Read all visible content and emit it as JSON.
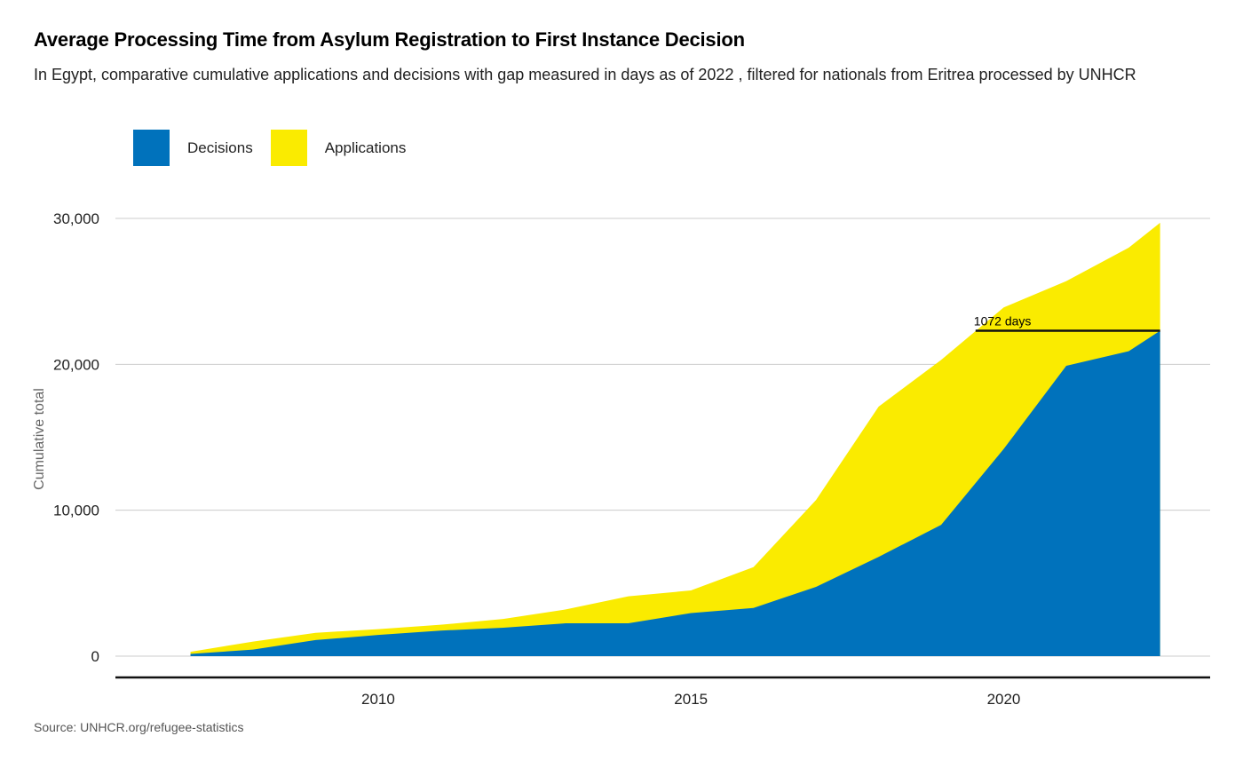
{
  "header": {
    "title": "Average Processing Time from Asylum Registration to First Instance Decision",
    "subtitle": "In Egypt, comparative cumulative applications and decisions with gap measured in days as of 2022 , filtered for nationals from Eritrea processed by UNHCR"
  },
  "legend": {
    "items": [
      {
        "label": "Decisions",
        "color": "#0072BC"
      },
      {
        "label": "Applications",
        "color": "#FAEB00"
      }
    ]
  },
  "footer": {
    "source": "Source: UNHCR.org/refugee-statistics"
  },
  "chart_data": {
    "type": "area",
    "title": "Average Processing Time from Asylum Registration to First Instance Decision",
    "xlabel": "",
    "ylabel": "Cumulative total",
    "xlim": [
      2005.8,
      2023.3
    ],
    "ylim": [
      0,
      30000
    ],
    "grid": true,
    "x_ticks": [
      2010,
      2015,
      2020
    ],
    "x_tick_labels": [
      "2010",
      "2015",
      "2020"
    ],
    "y_ticks": [
      0,
      10000,
      20000,
      30000
    ],
    "y_tick_labels": [
      "0",
      "10,000",
      "20,000",
      "30,000"
    ],
    "x": [
      2007,
      2008,
      2009,
      2010,
      2011,
      2012,
      2013,
      2014,
      2015,
      2016,
      2017,
      2018,
      2019,
      2020,
      2021,
      2022,
      2022.5
    ],
    "series": [
      {
        "name": "Applications",
        "color": "#FAEB00",
        "values": [
          300,
          1000,
          1600,
          1850,
          2150,
          2550,
          3200,
          4100,
          4500,
          6100,
          10700,
          17100,
          20300,
          23900,
          25700,
          28000,
          29700
        ]
      },
      {
        "name": "Decisions",
        "color": "#0072BC",
        "values": [
          150,
          450,
          1100,
          1450,
          1750,
          1950,
          2250,
          2250,
          2950,
          3300,
          4750,
          6800,
          9000,
          14200,
          19900,
          20900,
          22300
        ]
      }
    ],
    "annotation": {
      "text": "1072 days",
      "y": 22300,
      "x_start": 2019.55,
      "x_end": 2022.5
    }
  }
}
